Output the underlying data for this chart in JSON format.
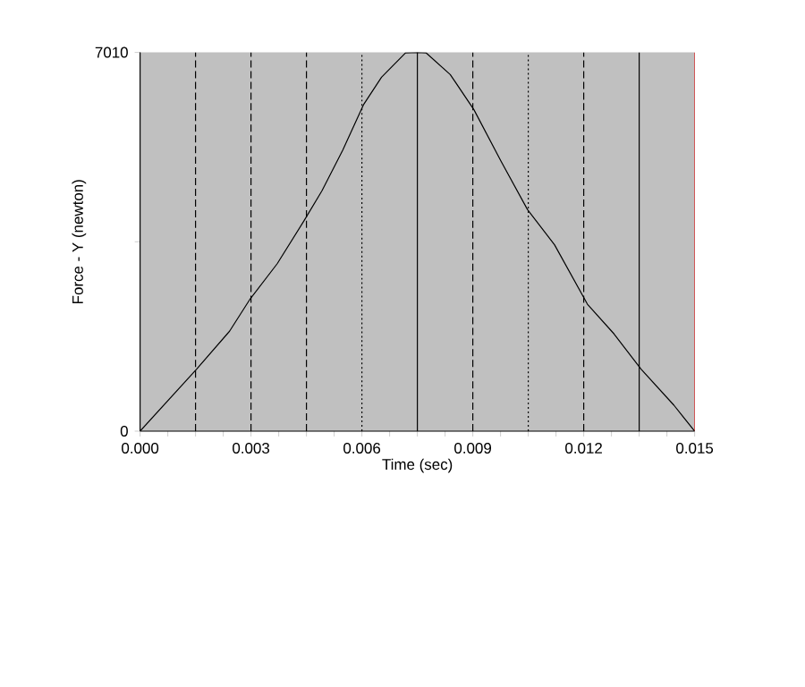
{
  "chart_data": {
    "type": "line",
    "xlabel": "Time (sec)",
    "ylabel": "Force - Y (newton)",
    "x": [
      0,
      0.00153,
      0.00242,
      0.00298,
      0.00371,
      0.00444,
      0.00492,
      0.00548,
      0.00605,
      0.00653,
      0.00718,
      0.0075,
      0.00774,
      0.00839,
      0.00903,
      0.00976,
      0.01048,
      0.01121,
      0.0121,
      0.01282,
      0.01355,
      0.01444,
      0.015
    ],
    "series": [
      {
        "color": "#000000",
        "values": [
          0,
          1150,
          1850,
          2450,
          3100,
          3900,
          4450,
          5200,
          6050,
          6550,
          7000,
          7010,
          7000,
          6600,
          5950,
          5000,
          4100,
          3450,
          2350,
          1800,
          1150,
          480,
          0
        ]
      }
    ],
    "xlim": [
      0,
      0.015
    ],
    "ylim": [
      0,
      7010
    ],
    "xticks": [
      {
        "value": 0,
        "label": "0.000"
      },
      {
        "value": 0.00075,
        "label": null
      },
      {
        "value": 0.0015,
        "label": null
      },
      {
        "value": 0.00225,
        "label": null
      },
      {
        "value": 0.003,
        "label": "0.003"
      },
      {
        "value": 0.00375,
        "label": null
      },
      {
        "value": 0.0045,
        "label": null
      },
      {
        "value": 0.00525,
        "label": null
      },
      {
        "value": 0.006,
        "label": "0.006"
      },
      {
        "value": 0.00675,
        "label": null
      },
      {
        "value": 0.0075,
        "label": null
      },
      {
        "value": 0.00825,
        "label": null
      },
      {
        "value": 0.009,
        "label": "0.009"
      },
      {
        "value": 0.00975,
        "label": null
      },
      {
        "value": 0.0105,
        "label": null
      },
      {
        "value": 0.01125,
        "label": null
      },
      {
        "value": 0.012,
        "label": "0.012"
      },
      {
        "value": 0.01275,
        "label": null
      },
      {
        "value": 0.0135,
        "label": null
      },
      {
        "value": 0.01425,
        "label": null
      },
      {
        "value": 0.015,
        "label": "0.015"
      }
    ],
    "yticks": [
      0,
      {
        "value": 3505,
        "label": null
      },
      7010
    ],
    "ref_lines": [
      {
        "axis": "x",
        "value": 0.0015,
        "line_style": "dashed",
        "color": "#000000"
      },
      {
        "axis": "x",
        "value": 0.003,
        "line_style": "dashed",
        "color": "#000000"
      },
      {
        "axis": "x",
        "value": 0.0045,
        "line_style": "dashed",
        "color": "#000000"
      },
      {
        "axis": "x",
        "value": 0.006,
        "line_style": "dotted",
        "color": "#000000"
      },
      {
        "axis": "x",
        "value": 0.0075,
        "line_style": "solid",
        "color": "#000000"
      },
      {
        "axis": "x",
        "value": 0.009,
        "line_style": "dashed",
        "color": "#000000"
      },
      {
        "axis": "x",
        "value": 0.0105,
        "line_style": "dotted",
        "color": "#000000"
      },
      {
        "axis": "x",
        "value": 0.012,
        "line_style": "dashed",
        "color": "#000000"
      },
      {
        "axis": "x",
        "value": 0.0135,
        "line_style": "solid",
        "color": "#000000"
      },
      {
        "axis": "x",
        "value": 0.015,
        "line_style": "solid",
        "color": "#cc0000"
      }
    ],
    "grid": false,
    "line_style": "solid"
  }
}
